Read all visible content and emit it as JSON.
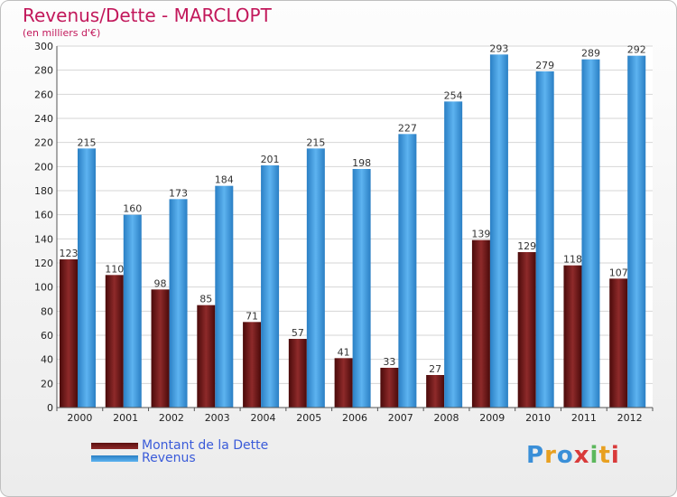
{
  "title": "Revenus/Dette - MARCLOPT",
  "subtitle": "(en milliers d'€)",
  "logo": "Proxiti",
  "colors": {
    "dette": "#7a1c1c",
    "revenus": "#3f9be0",
    "title": "#c2185b"
  },
  "chart_data": {
    "type": "bar",
    "categories": [
      "2000",
      "2001",
      "2002",
      "2003",
      "2004",
      "2005",
      "2006",
      "2007",
      "2008",
      "2009",
      "2010",
      "2011",
      "2012"
    ],
    "series": [
      {
        "name": "Montant de la Dette",
        "values": [
          123,
          110,
          98,
          85,
          71,
          57,
          41,
          33,
          27,
          139,
          129,
          118,
          107
        ]
      },
      {
        "name": "Revenus",
        "values": [
          215,
          160,
          173,
          184,
          201,
          215,
          198,
          227,
          254,
          293,
          279,
          289,
          292
        ]
      }
    ],
    "ylim": [
      0,
      300
    ],
    "yticks": [
      0,
      20,
      40,
      60,
      80,
      100,
      120,
      140,
      160,
      180,
      200,
      220,
      240,
      260,
      280,
      300
    ],
    "grid": true,
    "legend": "bottom-left"
  }
}
